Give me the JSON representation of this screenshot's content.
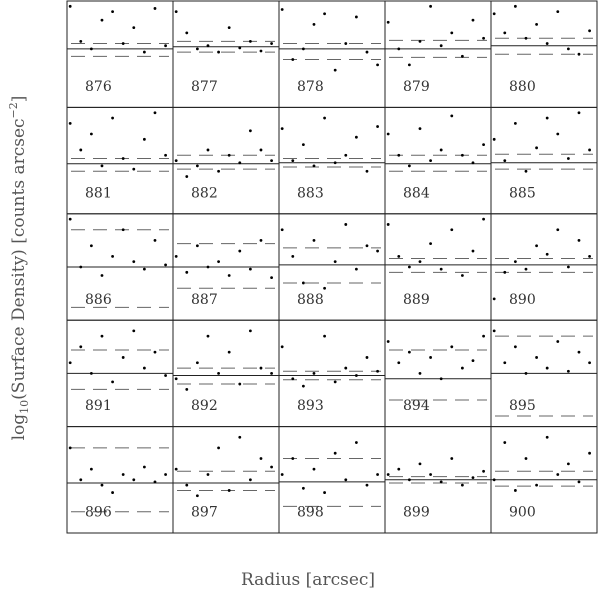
{
  "figure": {
    "ylabel": {
      "log": "log",
      "sub": "10",
      "mid": "(Surface Density) [counts arcsec",
      "sup": "−2",
      "end": "]"
    },
    "xlabel": "Radius [arcsec]"
  },
  "chart_data": [
    {
      "type": "scatter",
      "label": "876",
      "xlim": [
        0,
        1
      ],
      "ylim": [
        0,
        1
      ],
      "x": [
        0.03,
        0.13,
        0.23,
        0.33,
        0.43,
        0.53,
        0.63,
        0.73,
        0.83,
        0.93
      ],
      "y": [
        0.95,
        0.62,
        0.55,
        0.82,
        0.9,
        0.6,
        0.75,
        0.52,
        0.93,
        0.58
      ],
      "level": 0.55,
      "bounds": [
        0.48,
        0.6
      ]
    },
    {
      "type": "scatter",
      "label": "877",
      "xlim": [
        0,
        1
      ],
      "ylim": [
        0,
        1
      ],
      "x": [
        0.03,
        0.13,
        0.23,
        0.33,
        0.43,
        0.53,
        0.63,
        0.73,
        0.83,
        0.93
      ],
      "y": [
        0.9,
        0.7,
        0.55,
        0.58,
        0.52,
        0.75,
        0.56,
        0.62,
        0.53,
        0.6
      ],
      "level": 0.57,
      "bounds": [
        0.52,
        0.62
      ]
    },
    {
      "type": "scatter",
      "label": "878",
      "xlim": [
        0,
        1
      ],
      "ylim": [
        0,
        1
      ],
      "x": [
        0.03,
        0.13,
        0.23,
        0.33,
        0.43,
        0.53,
        0.63,
        0.73,
        0.83,
        0.93
      ],
      "y": [
        0.92,
        0.45,
        0.55,
        0.78,
        0.88,
        0.35,
        0.6,
        0.85,
        0.52,
        0.4
      ],
      "level": 0.55,
      "bounds": [
        0.45,
        0.6
      ]
    },
    {
      "type": "scatter",
      "label": "879",
      "xlim": [
        0,
        1
      ],
      "ylim": [
        0,
        1
      ],
      "x": [
        0.03,
        0.13,
        0.23,
        0.33,
        0.43,
        0.53,
        0.63,
        0.73,
        0.83,
        0.93
      ],
      "y": [
        0.8,
        0.55,
        0.4,
        0.62,
        0.95,
        0.58,
        0.7,
        0.48,
        0.82,
        0.65
      ],
      "level": 0.55,
      "bounds": [
        0.47,
        0.63
      ]
    },
    {
      "type": "scatter",
      "label": "880",
      "xlim": [
        0,
        1
      ],
      "ylim": [
        0,
        1
      ],
      "x": [
        0.03,
        0.13,
        0.23,
        0.33,
        0.43,
        0.53,
        0.63,
        0.73,
        0.83,
        0.93
      ],
      "y": [
        0.88,
        0.7,
        0.95,
        0.65,
        0.78,
        0.6,
        0.9,
        0.55,
        0.5,
        0.72
      ],
      "level": 0.58,
      "bounds": [
        0.5,
        0.65
      ]
    },
    {
      "type": "scatter",
      "label": "881",
      "xlim": [
        0,
        1
      ],
      "ylim": [
        0,
        1
      ],
      "x": [
        0.03,
        0.13,
        0.23,
        0.33,
        0.43,
        0.53,
        0.63,
        0.73,
        0.83,
        0.93
      ],
      "y": [
        0.85,
        0.6,
        0.75,
        0.45,
        0.9,
        0.52,
        0.42,
        0.7,
        0.95,
        0.55
      ],
      "level": 0.47,
      "bounds": [
        0.4,
        0.52
      ]
    },
    {
      "type": "scatter",
      "label": "882",
      "xlim": [
        0,
        1
      ],
      "ylim": [
        0,
        1
      ],
      "x": [
        0.03,
        0.13,
        0.23,
        0.33,
        0.43,
        0.53,
        0.63,
        0.73,
        0.83,
        0.93
      ],
      "y": [
        0.5,
        0.35,
        0.45,
        0.6,
        0.4,
        0.55,
        0.48,
        0.78,
        0.6,
        0.5
      ],
      "level": 0.47,
      "bounds": [
        0.42,
        0.55
      ]
    },
    {
      "type": "scatter",
      "label": "883",
      "xlim": [
        0,
        1
      ],
      "ylim": [
        0,
        1
      ],
      "x": [
        0.03,
        0.13,
        0.23,
        0.33,
        0.43,
        0.53,
        0.63,
        0.73,
        0.83,
        0.93
      ],
      "y": [
        0.8,
        0.5,
        0.65,
        0.45,
        0.9,
        0.48,
        0.55,
        0.72,
        0.4,
        0.82
      ],
      "level": 0.48,
      "bounds": [
        0.44,
        0.52
      ]
    },
    {
      "type": "scatter",
      "label": "884",
      "xlim": [
        0,
        1
      ],
      "ylim": [
        0,
        1
      ],
      "x": [
        0.03,
        0.13,
        0.23,
        0.33,
        0.43,
        0.53,
        0.63,
        0.73,
        0.83,
        0.93
      ],
      "y": [
        0.75,
        0.55,
        0.45,
        0.8,
        0.5,
        0.6,
        0.92,
        0.55,
        0.48,
        0.65
      ],
      "level": 0.47,
      "bounds": [
        0.4,
        0.55
      ]
    },
    {
      "type": "scatter",
      "label": "885",
      "xlim": [
        0,
        1
      ],
      "ylim": [
        0,
        1
      ],
      "x": [
        0.03,
        0.13,
        0.23,
        0.33,
        0.43,
        0.53,
        0.63,
        0.73,
        0.83,
        0.93
      ],
      "y": [
        0.7,
        0.5,
        0.85,
        0.4,
        0.62,
        0.9,
        0.75,
        0.52,
        0.95,
        0.6
      ],
      "level": 0.48,
      "bounds": [
        0.42,
        0.56
      ]
    },
    {
      "type": "scatter",
      "label": "886",
      "xlim": [
        0,
        1
      ],
      "ylim": [
        0,
        1
      ],
      "x": [
        0.03,
        0.13,
        0.23,
        0.33,
        0.43,
        0.53,
        0.63,
        0.73,
        0.83,
        0.93
      ],
      "y": [
        0.95,
        0.5,
        0.7,
        0.42,
        0.6,
        0.85,
        0.55,
        0.48,
        0.75,
        0.52
      ],
      "level": 0.5,
      "bounds": [
        0.12,
        0.85
      ]
    },
    {
      "type": "scatter",
      "label": "887",
      "xlim": [
        0,
        1
      ],
      "ylim": [
        0,
        1
      ],
      "x": [
        0.03,
        0.13,
        0.23,
        0.33,
        0.43,
        0.53,
        0.63,
        0.73,
        0.83,
        0.93
      ],
      "y": [
        0.6,
        0.45,
        0.7,
        0.5,
        0.55,
        0.42,
        0.65,
        0.48,
        0.75,
        0.4
      ],
      "level": 0.5,
      "bounds": [
        0.3,
        0.72
      ]
    },
    {
      "type": "scatter",
      "label": "888",
      "xlim": [
        0,
        1
      ],
      "ylim": [
        0,
        1
      ],
      "x": [
        0.03,
        0.13,
        0.23,
        0.33,
        0.43,
        0.53,
        0.63,
        0.73,
        0.83,
        0.93
      ],
      "y": [
        0.85,
        0.6,
        0.35,
        0.75,
        0.3,
        0.55,
        0.9,
        0.48,
        0.7,
        0.65
      ],
      "level": 0.52,
      "bounds": [
        0.35,
        0.68
      ]
    },
    {
      "type": "scatter",
      "label": "889",
      "xlim": [
        0,
        1
      ],
      "ylim": [
        0,
        1
      ],
      "x": [
        0.03,
        0.13,
        0.23,
        0.33,
        0.43,
        0.53,
        0.63,
        0.73,
        0.83,
        0.93
      ],
      "y": [
        0.9,
        0.6,
        0.5,
        0.55,
        0.72,
        0.48,
        0.85,
        0.42,
        0.65,
        0.95
      ],
      "level": 0.52,
      "bounds": [
        0.45,
        0.58
      ]
    },
    {
      "type": "scatter",
      "label": "890",
      "xlim": [
        0,
        1
      ],
      "ylim": [
        0,
        1
      ],
      "x": [
        0.03,
        0.13,
        0.23,
        0.33,
        0.43,
        0.53,
        0.63,
        0.73,
        0.83,
        0.93
      ],
      "y": [
        0.2,
        0.45,
        0.55,
        0.48,
        0.7,
        0.62,
        0.85,
        0.5,
        0.75,
        0.6
      ],
      "level": 0.52,
      "bounds": [
        0.45,
        0.58
      ]
    },
    {
      "type": "scatter",
      "label": "891",
      "xlim": [
        0,
        1
      ],
      "ylim": [
        0,
        1
      ],
      "x": [
        0.03,
        0.13,
        0.23,
        0.33,
        0.43,
        0.53,
        0.63,
        0.73,
        0.83,
        0.93
      ],
      "y": [
        0.6,
        0.75,
        0.5,
        0.85,
        0.42,
        0.65,
        0.9,
        0.55,
        0.7,
        0.48
      ],
      "level": 0.5,
      "bounds": [
        0.35,
        0.72
      ]
    },
    {
      "type": "scatter",
      "label": "892",
      "xlim": [
        0,
        1
      ],
      "ylim": [
        0,
        1
      ],
      "x": [
        0.03,
        0.13,
        0.23,
        0.33,
        0.43,
        0.53,
        0.63,
        0.73,
        0.83,
        0.93
      ],
      "y": [
        0.45,
        0.35,
        0.6,
        0.85,
        0.5,
        0.7,
        0.4,
        0.9,
        0.55,
        0.5
      ],
      "level": 0.48,
      "bounds": [
        0.4,
        0.55
      ]
    },
    {
      "type": "scatter",
      "label": "893",
      "xlim": [
        0,
        1
      ],
      "ylim": [
        0,
        1
      ],
      "x": [
        0.03,
        0.13,
        0.23,
        0.33,
        0.43,
        0.53,
        0.63,
        0.73,
        0.83,
        0.93
      ],
      "y": [
        0.75,
        0.45,
        0.38,
        0.5,
        0.85,
        0.42,
        0.55,
        0.48,
        0.65,
        0.52
      ],
      "level": 0.48,
      "bounds": [
        0.44,
        0.52
      ]
    },
    {
      "type": "scatter",
      "label": "894",
      "xlim": [
        0,
        1
      ],
      "ylim": [
        0,
        1
      ],
      "x": [
        0.03,
        0.13,
        0.23,
        0.33,
        0.43,
        0.53,
        0.63,
        0.73,
        0.83,
        0.93
      ],
      "y": [
        0.8,
        0.6,
        0.7,
        0.5,
        0.65,
        0.45,
        0.75,
        0.55,
        0.62,
        0.85
      ],
      "level": 0.45,
      "bounds": [
        0.25,
        0.72
      ]
    },
    {
      "type": "scatter",
      "label": "895",
      "xlim": [
        0,
        1
      ],
      "ylim": [
        0,
        1
      ],
      "x": [
        0.03,
        0.13,
        0.23,
        0.33,
        0.43,
        0.53,
        0.63,
        0.73,
        0.83,
        0.93
      ],
      "y": [
        0.9,
        0.6,
        0.75,
        0.5,
        0.65,
        0.55,
        0.8,
        0.52,
        0.7,
        0.6
      ],
      "level": 0.5,
      "bounds": [
        0.1,
        0.85
      ]
    },
    {
      "type": "scatter",
      "label": "896",
      "xlim": [
        0,
        1
      ],
      "ylim": [
        0,
        1
      ],
      "x": [
        0.03,
        0.13,
        0.23,
        0.33,
        0.43,
        0.53,
        0.63,
        0.73,
        0.83,
        0.93
      ],
      "y": [
        0.8,
        0.5,
        0.6,
        0.45,
        0.38,
        0.55,
        0.5,
        0.62,
        0.48,
        0.55
      ],
      "level": 0.47,
      "bounds": [
        0.2,
        0.8
      ]
    },
    {
      "type": "scatter",
      "label": "897",
      "xlim": [
        0,
        1
      ],
      "ylim": [
        0,
        1
      ],
      "x": [
        0.03,
        0.13,
        0.23,
        0.33,
        0.43,
        0.53,
        0.63,
        0.73,
        0.83,
        0.93
      ],
      "y": [
        0.6,
        0.45,
        0.35,
        0.55,
        0.8,
        0.4,
        0.9,
        0.5,
        0.7,
        0.62
      ],
      "level": 0.47,
      "bounds": [
        0.4,
        0.58
      ]
    },
    {
      "type": "scatter",
      "label": "898",
      "xlim": [
        0,
        1
      ],
      "ylim": [
        0,
        1
      ],
      "x": [
        0.03,
        0.13,
        0.23,
        0.33,
        0.43,
        0.53,
        0.63,
        0.73,
        0.83,
        0.93
      ],
      "y": [
        0.55,
        0.7,
        0.42,
        0.6,
        0.38,
        0.75,
        0.5,
        0.85,
        0.45,
        0.55
      ],
      "level": 0.48,
      "bounds": [
        0.25,
        0.7
      ]
    },
    {
      "type": "scatter",
      "label": "899",
      "xlim": [
        0,
        1
      ],
      "ylim": [
        0,
        1
      ],
      "x": [
        0.03,
        0.13,
        0.23,
        0.33,
        0.43,
        0.53,
        0.63,
        0.73,
        0.83,
        0.93
      ],
      "y": [
        0.55,
        0.6,
        0.5,
        0.65,
        0.55,
        0.48,
        0.7,
        0.45,
        0.52,
        0.58
      ],
      "level": 0.5,
      "bounds": [
        0.47,
        0.53
      ]
    },
    {
      "type": "scatter",
      "label": "900",
      "xlim": [
        0,
        1
      ],
      "ylim": [
        0,
        1
      ],
      "x": [
        0.03,
        0.13,
        0.23,
        0.33,
        0.43,
        0.53,
        0.63,
        0.73,
        0.83,
        0.93
      ],
      "y": [
        0.5,
        0.85,
        0.4,
        0.7,
        0.45,
        0.9,
        0.55,
        0.65,
        0.48,
        0.75
      ],
      "level": 0.5,
      "bounds": [
        0.44,
        0.58
      ]
    }
  ]
}
